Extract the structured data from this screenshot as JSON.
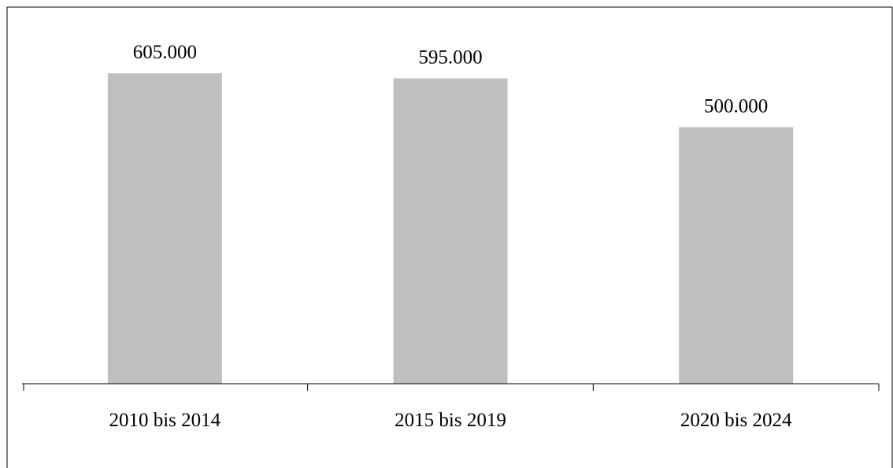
{
  "chart_data": {
    "type": "bar",
    "categories": [
      "2010 bis 2014",
      "2015 bis 2019",
      "2020 bis 2024"
    ],
    "values": [
      605000,
      595000,
      500000
    ],
    "data_labels": [
      "605.000",
      "595.000",
      "500.000"
    ],
    "title": "",
    "xlabel": "",
    "ylabel": "",
    "ylim": [
      0,
      680000
    ],
    "grid": false,
    "legend": "none",
    "bar_color": "#bfbfbf",
    "axis_color": "#000000"
  }
}
